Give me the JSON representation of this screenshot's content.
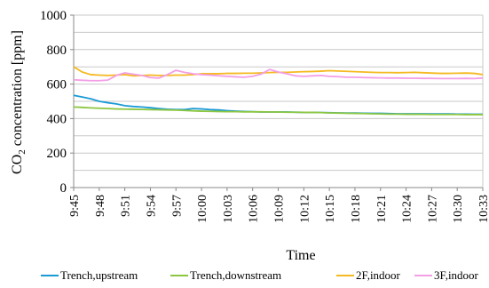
{
  "chart_data": {
    "type": "line",
    "xlabel": "Time",
    "ylabel": "CO",
    "ylabel_sub": "2",
    "ylabel_rest": " concentration [ppm]",
    "ylim": [
      0,
      1000
    ],
    "yticks": [
      0,
      200,
      400,
      600,
      800,
      1000
    ],
    "grid": "horizontal",
    "legend_position": "bottom",
    "x_tick_labels": [
      "9:45",
      "9:48",
      "9:51",
      "9:54",
      "9:57",
      "10:00",
      "10:03",
      "10:06",
      "10:09",
      "10:12",
      "10:15",
      "10:18",
      "10:21",
      "10:24",
      "10:27",
      "10:30",
      "10:33"
    ],
    "x": [
      "9:45",
      "9:46",
      "9:47",
      "9:48",
      "9:49",
      "9:50",
      "9:51",
      "9:52",
      "9:53",
      "9:54",
      "9:55",
      "9:56",
      "9:57",
      "9:58",
      "9:59",
      "10:00",
      "10:01",
      "10:02",
      "10:03",
      "10:04",
      "10:05",
      "10:06",
      "10:07",
      "10:08",
      "10:09",
      "10:10",
      "10:11",
      "10:12",
      "10:13",
      "10:14",
      "10:15",
      "10:16",
      "10:17",
      "10:18",
      "10:19",
      "10:20",
      "10:21",
      "10:22",
      "10:23",
      "10:24",
      "10:25",
      "10:26",
      "10:27",
      "10:28",
      "10:29",
      "10:30",
      "10:31",
      "10:32",
      "10:33"
    ],
    "series": [
      {
        "name": "Trench,upstream",
        "color": "#1a9ad6",
        "values": [
          535,
          525,
          515,
          500,
          492,
          485,
          475,
          470,
          467,
          463,
          458,
          454,
          452,
          452,
          458,
          456,
          452,
          450,
          446,
          443,
          441,
          440,
          438,
          438,
          438,
          438,
          437,
          436,
          436,
          435,
          434,
          433,
          432,
          432,
          431,
          430,
          430,
          429,
          428,
          428,
          428,
          428,
          427,
          427,
          427,
          426,
          426,
          425,
          425
        ]
      },
      {
        "name": "Trench,downstream",
        "color": "#8cc63f",
        "values": [
          467,
          465,
          462,
          460,
          458,
          456,
          455,
          454,
          453,
          452,
          451,
          450,
          449,
          447,
          445,
          443,
          442,
          441,
          440,
          440,
          439,
          439,
          439,
          438,
          438,
          437,
          437,
          436,
          436,
          435,
          433,
          432,
          431,
          430,
          429,
          428,
          427,
          426,
          426,
          425,
          425,
          425,
          424,
          424,
          424,
          424,
          423,
          423,
          423
        ]
      },
      {
        "name": "2F,indoor",
        "color": "#f5b921",
        "values": [
          700,
          670,
          655,
          652,
          650,
          652,
          655,
          648,
          650,
          652,
          650,
          650,
          652,
          652,
          655,
          660,
          660,
          660,
          662,
          662,
          663,
          663,
          665,
          667,
          668,
          668,
          670,
          672,
          673,
          675,
          678,
          676,
          674,
          672,
          670,
          668,
          667,
          667,
          666,
          667,
          668,
          666,
          664,
          662,
          662,
          663,
          664,
          662,
          655
        ]
      },
      {
        "name": "3F,indoor",
        "color": "#f39ee6",
        "values": [
          625,
          622,
          620,
          620,
          623,
          650,
          665,
          657,
          650,
          638,
          635,
          655,
          680,
          668,
          660,
          655,
          652,
          648,
          645,
          642,
          640,
          645,
          658,
          685,
          670,
          660,
          648,
          645,
          648,
          650,
          645,
          643,
          640,
          640,
          638,
          637,
          636,
          635,
          635,
          634,
          634,
          633,
          633,
          632,
          632,
          632,
          633,
          632,
          635
        ]
      }
    ]
  }
}
